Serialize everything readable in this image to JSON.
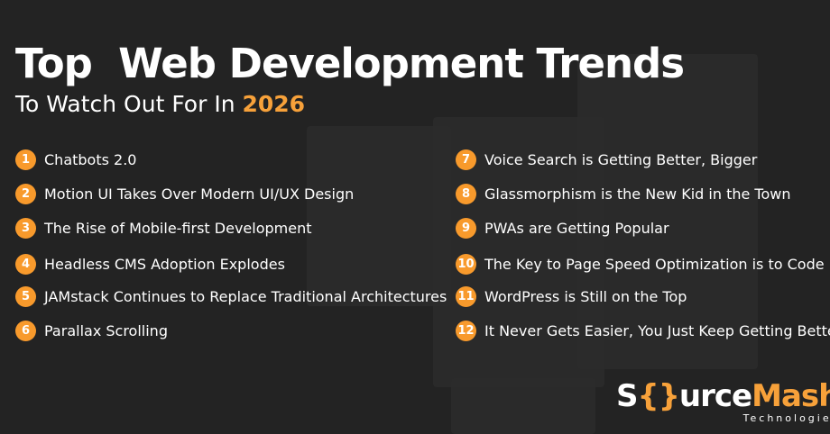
{
  "title": "Top  Web Development Trends",
  "subtitle": "To Watch Out For In",
  "year": "2026",
  "left": [
    {
      "n": "1",
      "t": "Chatbots 2.0"
    },
    {
      "n": "2",
      "t": "Motion UI Takes Over Modern UI/UX Design"
    },
    {
      "n": "3",
      "t": "The Rise of Mobile-first Development"
    },
    {
      "n": "4",
      "t": "Headless CMS Adoption Explodes"
    },
    {
      "n": "5",
      "t": "JAMstack Continues to Replace Traditional Architectures"
    },
    {
      "n": "6",
      "t": "Parallax Scrolling"
    }
  ],
  "right": [
    {
      "n": "7",
      "t": "Voice Search is Getting Better, Bigger"
    },
    {
      "n": "8",
      "t": "Glassmorphism is the New Kid in the Town"
    },
    {
      "n": "9",
      "t": "PWAs are Getting Popular"
    },
    {
      "n": "10",
      "t": "The Key to Page Speed Optimization is to Code It"
    },
    {
      "n": "11",
      "t": "WordPress is Still on the Top"
    },
    {
      "n": "12",
      "t": "It Never Gets Easier, You Just Keep Getting Better"
    }
  ],
  "logo": {
    "a": "S",
    "b": "{}",
    "c": "urce",
    "d": "Mash",
    "sub": "Technologies"
  },
  "accent": "#f89a2c"
}
